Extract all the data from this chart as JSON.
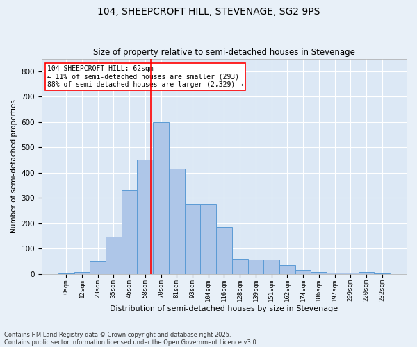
{
  "title": "104, SHEEPCROFT HILL, STEVENAGE, SG2 9PS",
  "subtitle": "Size of property relative to semi-detached houses in Stevenage",
  "xlabel": "Distribution of semi-detached houses by size in Stevenage",
  "ylabel": "Number of semi-detached properties",
  "bins": [
    "0sqm",
    "12sqm",
    "23sqm",
    "35sqm",
    "46sqm",
    "58sqm",
    "70sqm",
    "81sqm",
    "93sqm",
    "104sqm",
    "116sqm",
    "128sqm",
    "139sqm",
    "151sqm",
    "162sqm",
    "174sqm",
    "186sqm",
    "197sqm",
    "209sqm",
    "220sqm",
    "232sqm"
  ],
  "values": [
    2,
    8,
    50,
    148,
    330,
    450,
    600,
    415,
    275,
    275,
    185,
    60,
    55,
    55,
    35,
    15,
    8,
    5,
    3,
    8,
    2
  ],
  "bar_color": "#aec6e8",
  "bar_edge_color": "#5b9bd5",
  "annotation_title": "104 SHEEPCROFT HILL: 62sqm",
  "annotation_line1": "← 11% of semi-detached houses are smaller (293)",
  "annotation_line2": "88% of semi-detached houses are larger (2,329) →",
  "red_line_x": 5.35,
  "ylim": [
    0,
    850
  ],
  "yticks": [
    0,
    100,
    200,
    300,
    400,
    500,
    600,
    700,
    800
  ],
  "footer1": "Contains HM Land Registry data © Crown copyright and database right 2025.",
  "footer2": "Contains public sector information licensed under the Open Government Licence v3.0.",
  "background_color": "#e8f0f8",
  "plot_background": "#dce8f5"
}
